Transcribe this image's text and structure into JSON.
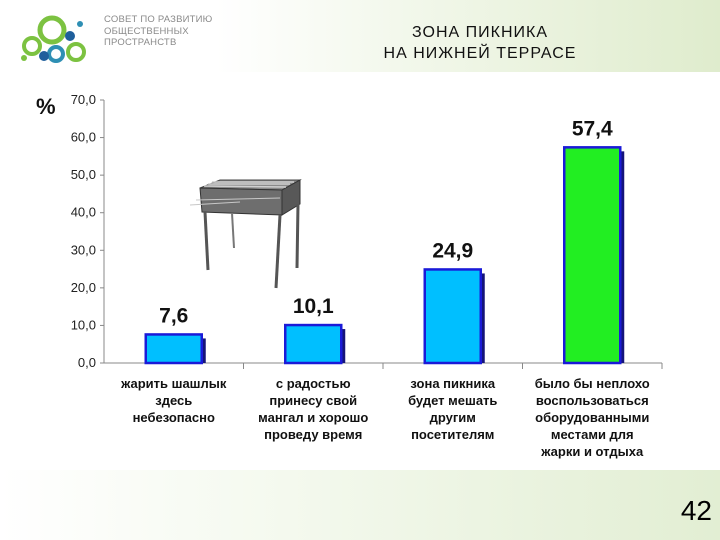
{
  "header": {
    "logo_lines": [
      "СОВЕТ ПО РАЗВИТИЮ",
      "ОБЩЕСТВЕННЫХ",
      "ПРОСТРАНСТВ"
    ],
    "title_lines": [
      "ЗОНА ПИКНИКА",
      "НА НИЖНЕЙ ТЕРРАСЕ"
    ]
  },
  "chart_data": {
    "type": "bar",
    "ylabel": "%",
    "ylim": [
      0,
      70
    ],
    "yticks": [
      "0,0",
      "10,0",
      "20,0",
      "30,0",
      "40,0",
      "50,0",
      "60,0",
      "70,0"
    ],
    "grid": false,
    "categories": [
      [
        "жарить шашлык",
        "здесь",
        "небезопасно"
      ],
      [
        "с радостью",
        "принесу свой",
        "мангал и хорошо",
        "проведу время"
      ],
      [
        "зона пикника",
        "будет мешать",
        "другим",
        "посетителям"
      ],
      [
        "было бы неплохо",
        "воспользоваться",
        "оборудованными",
        "местами для",
        "жарки и отдыха"
      ]
    ],
    "values": [
      7.6,
      10.1,
      24.9,
      57.4
    ],
    "value_labels": [
      "7,6",
      "10,1",
      "24,9",
      "57,4"
    ],
    "bar_colors": [
      "#00bfff",
      "#00bfff",
      "#00bfff",
      "#22ee22"
    ]
  },
  "footer": {
    "page_number": "42"
  },
  "colors": {
    "bar_border": "#1a1ad8",
    "bar_shadow": "#14147a"
  },
  "icons": {
    "illustration": "grill-icon"
  }
}
